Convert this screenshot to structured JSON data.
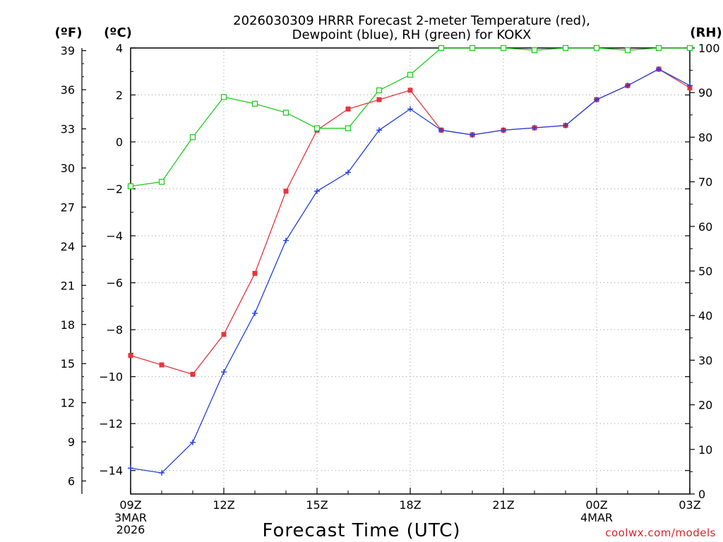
{
  "chart_data": {
    "type": "line",
    "title_line1": "2026030309 HRRR Forecast 2-meter Temperature (red),",
    "title_line2": "Dewpoint (blue), RH (green) for KOKX",
    "xlabel": "Forecast Time (UTC)",
    "credit": "coolwx.com/models",
    "left_unit_label": "(ºF)",
    "inner_unit_label": "(ºC)",
    "right_unit_label": "(RH)",
    "celsius_axis": {
      "ylim": [
        -15,
        4
      ],
      "ticks": [
        4,
        2,
        0,
        -2,
        -4,
        -6,
        -8,
        -10,
        -12,
        -14
      ],
      "tick_labels": [
        "4",
        "2",
        "0",
        "−2",
        "−4",
        "−6",
        "−8",
        "−10",
        "−12",
        "−14"
      ]
    },
    "fahrenheit_axis": {
      "ticks": [
        39,
        36,
        33,
        30,
        27,
        24,
        21,
        18,
        15,
        12,
        9,
        6
      ],
      "tick_labels": [
        "39",
        "36",
        "33",
        "30",
        "27",
        "24",
        "21",
        "18",
        "15",
        "12",
        "9",
        "6"
      ]
    },
    "rh_axis": {
      "ylim": [
        0,
        100
      ],
      "ticks": [
        100,
        90,
        80,
        70,
        60,
        50,
        40,
        30,
        20,
        10,
        0
      ],
      "tick_labels": [
        "100",
        "90",
        "80",
        "70",
        "60",
        "50",
        "40",
        "30",
        "20",
        "10",
        "0"
      ]
    },
    "x_hours": [
      0,
      1,
      2,
      3,
      4,
      5,
      6,
      7,
      8,
      9,
      10,
      11,
      12,
      13,
      14,
      15,
      16,
      17,
      18
    ],
    "x_ticks": [
      {
        "hour": 0,
        "label": "09Z",
        "line2": "3MAR",
        "line3": "2026"
      },
      {
        "hour": 3,
        "label": "12Z",
        "line2": "",
        "line3": ""
      },
      {
        "hour": 6,
        "label": "15Z",
        "line2": "",
        "line3": ""
      },
      {
        "hour": 9,
        "label": "18Z",
        "line2": "",
        "line3": ""
      },
      {
        "hour": 12,
        "label": "21Z",
        "line2": "",
        "line3": ""
      },
      {
        "hour": 15,
        "label": "00Z",
        "line2": "4MAR",
        "line3": ""
      },
      {
        "hour": 18,
        "label": "03Z",
        "line2": "",
        "line3": ""
      }
    ],
    "series": [
      {
        "name": "Temperature",
        "axis": "celsius",
        "color": "#e8343c",
        "marker": "filled-square",
        "values": [
          -9.1,
          -9.5,
          -9.9,
          -8.2,
          -5.6,
          -2.1,
          0.5,
          1.4,
          1.8,
          2.2,
          0.5,
          0.3,
          0.5,
          0.6,
          0.7,
          1.8,
          2.4,
          3.1,
          2.3
        ]
      },
      {
        "name": "Dewpoint",
        "axis": "celsius",
        "color": "#2040e0",
        "marker": "plus",
        "values": [
          -13.9,
          -14.1,
          -12.8,
          -9.8,
          -7.3,
          -4.2,
          -2.1,
          -1.3,
          0.5,
          1.4,
          0.5,
          0.3,
          0.5,
          0.6,
          0.7,
          1.8,
          2.4,
          3.1,
          2.4
        ]
      },
      {
        "name": "RH",
        "axis": "rh",
        "color": "#22cc22",
        "marker": "open-square",
        "values": [
          69,
          70,
          80,
          89,
          87.5,
          85.5,
          82,
          82,
          90.5,
          94,
          100,
          100,
          100,
          99.5,
          100,
          100,
          99.5,
          100,
          100
        ]
      }
    ],
    "grid": true
  }
}
